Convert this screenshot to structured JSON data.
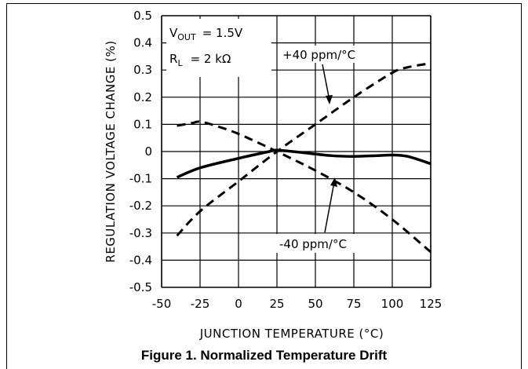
{
  "caption": "Figure 1. Normalized Temperature Drift",
  "chart_data": {
    "type": "line",
    "title": "",
    "xlabel": "JUNCTION TEMPERATURE (°C)",
    "ylabel": "REGULATION VOLTAGE CHANGE (%)",
    "xlim": [
      -50,
      125
    ],
    "ylim": [
      -0.5,
      0.5
    ],
    "grid": true,
    "x_ticks": [
      "-50",
      "-25",
      "0",
      "25",
      "50",
      "75",
      "100",
      "125"
    ],
    "y_ticks": [
      "0.5",
      "0.4",
      "0.3",
      "0.2",
      "0.1",
      "0",
      "-0.1",
      "-0.2",
      "-0.3",
      "-0.4",
      "-0.5"
    ],
    "conditions": {
      "vout": {
        "symbol": "V",
        "sub": "OUT",
        "value": "= 1.5V"
      },
      "rl": {
        "symbol": "R",
        "sub": "L",
        "value": "= 2 kΩ"
      }
    },
    "annotations": [
      {
        "text": "+40 ppm/°C",
        "series": 0
      },
      {
        "text": "-40 ppm/°C",
        "series": 1
      }
    ],
    "series": [
      {
        "style": "dashed",
        "x": [
          -40,
          -25,
          0,
          25,
          50,
          75,
          100,
          110,
          125
        ],
        "y": [
          -0.31,
          -0.22,
          -0.11,
          0.0,
          0.1,
          0.2,
          0.29,
          0.31,
          0.325
        ]
      },
      {
        "style": "dashed",
        "x": [
          -40,
          -30,
          -25,
          -15,
          0,
          25,
          50,
          75,
          100,
          125
        ],
        "y": [
          0.095,
          0.105,
          0.11,
          0.095,
          0.065,
          0.0,
          -0.07,
          -0.15,
          -0.25,
          -0.37
        ]
      },
      {
        "style": "solid",
        "x": [
          -40,
          -25,
          0,
          20,
          25,
          40,
          60,
          75,
          90,
          100,
          110,
          125
        ],
        "y": [
          -0.095,
          -0.06,
          -0.025,
          0.0,
          0.005,
          -0.003,
          -0.015,
          -0.018,
          -0.015,
          -0.013,
          -0.018,
          -0.045
        ]
      }
    ]
  }
}
